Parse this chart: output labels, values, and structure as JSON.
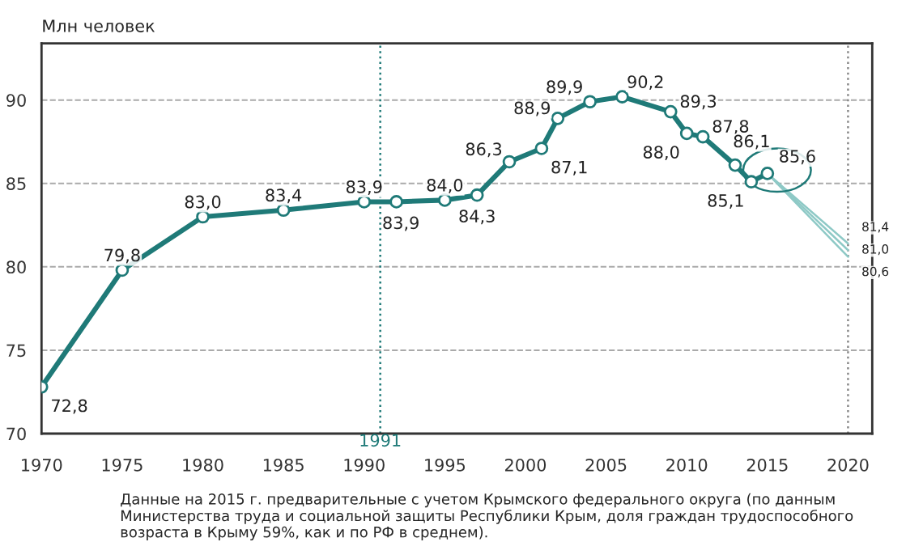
{
  "chart_data": {
    "type": "line",
    "ylabel": "Млн человек",
    "series": [
      {
        "color": "#1f7a78",
        "x": [
          1970,
          1975,
          1980,
          1985,
          1990,
          1992,
          1995,
          1997,
          1999,
          2001,
          2002,
          2004,
          2006,
          2009,
          2010,
          2011,
          2013,
          2014,
          2015
        ],
        "values": [
          72.8,
          79.8,
          83.0,
          83.4,
          83.9,
          83.9,
          84.0,
          84.3,
          86.3,
          87.1,
          88.9,
          89.9,
          90.2,
          89.3,
          88.0,
          87.8,
          86.1,
          85.1,
          85.6
        ],
        "value_labels": [
          "72,8",
          "79,8",
          "83,0",
          "83,4",
          "83,9",
          "83,9",
          "84,0",
          "84,3",
          "86,3",
          "87,1",
          "88,9",
          "89,9",
          "90,2",
          "89,3",
          "88,0",
          "87,8",
          "86,1",
          "85,1",
          "85,6"
        ],
        "marker": "circle",
        "line_style": "solid"
      },
      {
        "color": "#8ec9c6",
        "x": [
          2015,
          2020
        ],
        "values": [
          85.6,
          81.4
        ],
        "value_labels": [
          null,
          "81,4"
        ],
        "marker": "none",
        "line_style": "solid"
      },
      {
        "color": "#8ec9c6",
        "x": [
          2015,
          2020
        ],
        "values": [
          85.6,
          81.0
        ],
        "value_labels": [
          null,
          "81,0"
        ],
        "marker": "none",
        "line_style": "solid"
      },
      {
        "color": "#8ec9c6",
        "x": [
          2015,
          2020
        ],
        "values": [
          85.6,
          80.6
        ],
        "value_labels": [
          null,
          "80,6"
        ],
        "marker": "none",
        "line_style": "solid"
      }
    ],
    "xlim": [
      1970,
      2021.5
    ],
    "xticks": [
      1970,
      1975,
      1980,
      1985,
      1990,
      1995,
      2000,
      2005,
      2010,
      2015,
      2020
    ],
    "ylim": [
      70,
      93.4
    ],
    "yticks": [
      70,
      75,
      80,
      85,
      90
    ],
    "grid": "y",
    "ref_lines": [
      {
        "axis": "x",
        "value": 1991,
        "label": "1991",
        "color": "#1f7a78",
        "line_style": "dotted"
      },
      {
        "axis": "x",
        "value": 2020,
        "label": null,
        "color": "#888888",
        "line_style": "dotted"
      }
    ],
    "annotations": [
      "Данные на 2015 г. предварительные с учетом Крымского федерального округа (по данным Министерства труда и социальной защиты Республики Крым, доля граждан трудоспособного возраста в Крыму 59%, как и по РФ в среднем)."
    ]
  }
}
